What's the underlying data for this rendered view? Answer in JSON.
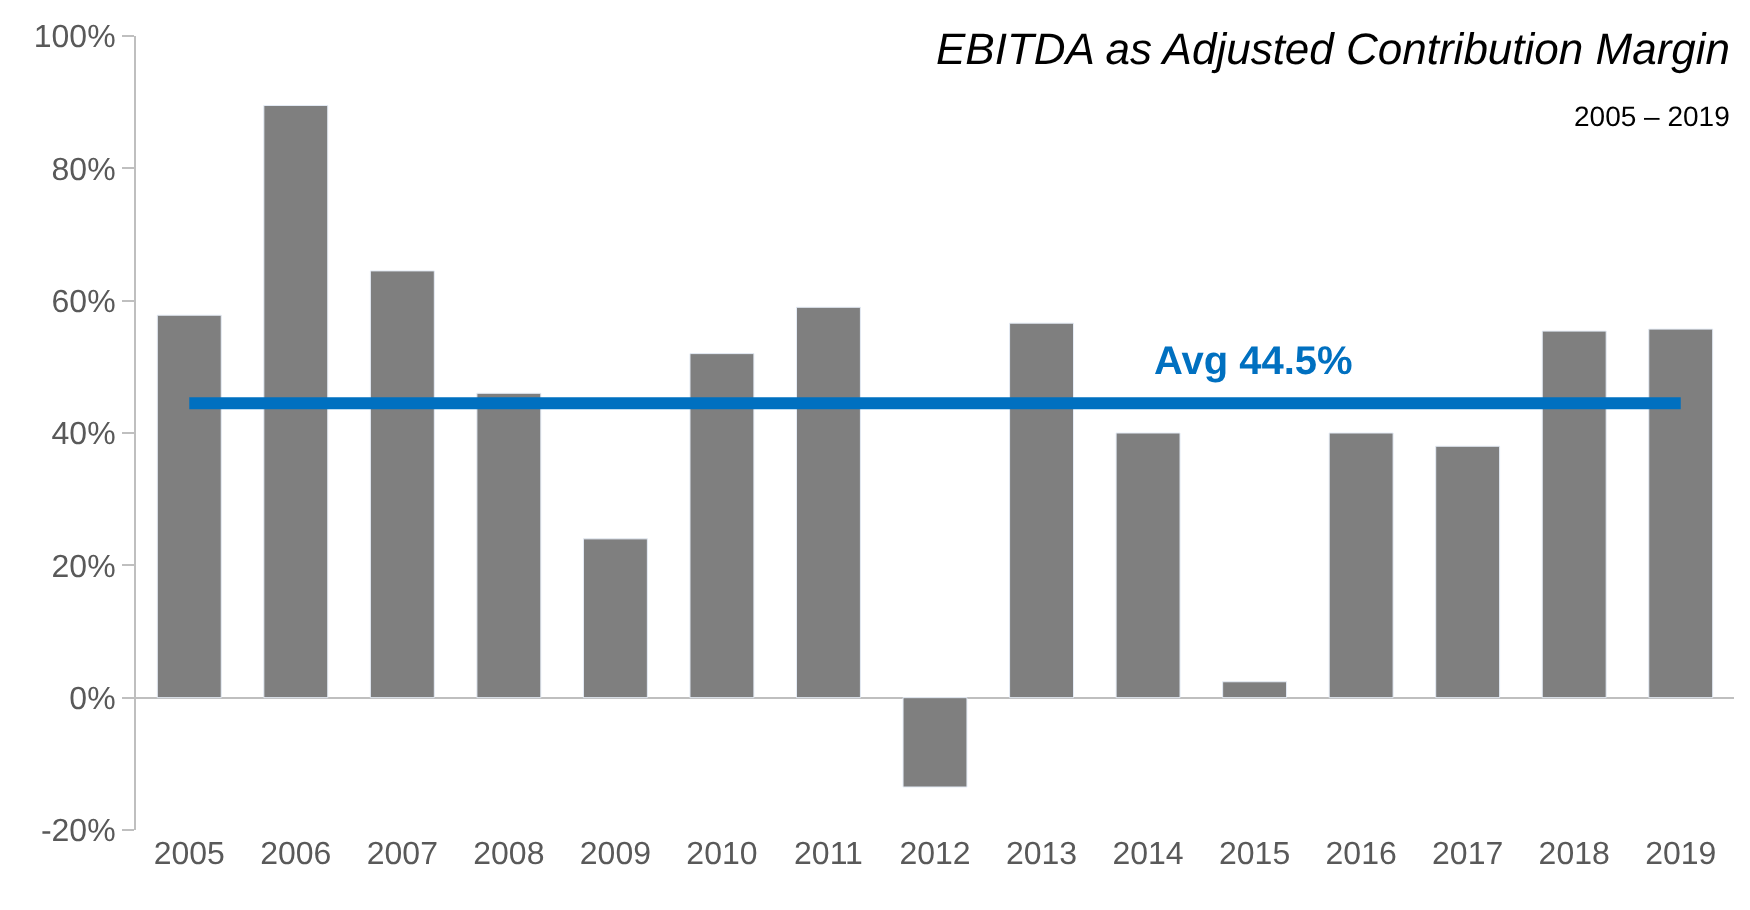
{
  "chart_data": {
    "type": "bar",
    "title": "EBITDA as Adjusted Contribution Margin",
    "subtitle": "2005 – 2019",
    "categories": [
      "2005",
      "2006",
      "2007",
      "2008",
      "2009",
      "2010",
      "2011",
      "2012",
      "2013",
      "2014",
      "2015",
      "2016",
      "2017",
      "2018",
      "2019"
    ],
    "values": [
      57.8,
      89.5,
      64.5,
      46,
      24,
      52,
      59,
      -13.5,
      56.6,
      40,
      2.4,
      40,
      38,
      55.4,
      55.7
    ],
    "color": "#7f7f7f",
    "ylim": [
      -20,
      100
    ],
    "yticks": [
      {
        "value": -20,
        "label": "-20%"
      },
      {
        "value": 0,
        "label": "0%"
      },
      {
        "value": 20,
        "label": "20%"
      },
      {
        "value": 40,
        "label": "40%"
      },
      {
        "value": 60,
        "label": "60%"
      },
      {
        "value": 80,
        "label": "80%"
      },
      {
        "value": 100,
        "label": "100%"
      }
    ],
    "ref_lines": [
      {
        "axis": "y",
        "value": 44.5,
        "label": "Avg 44.5%",
        "color": "#0070c0"
      }
    ]
  }
}
